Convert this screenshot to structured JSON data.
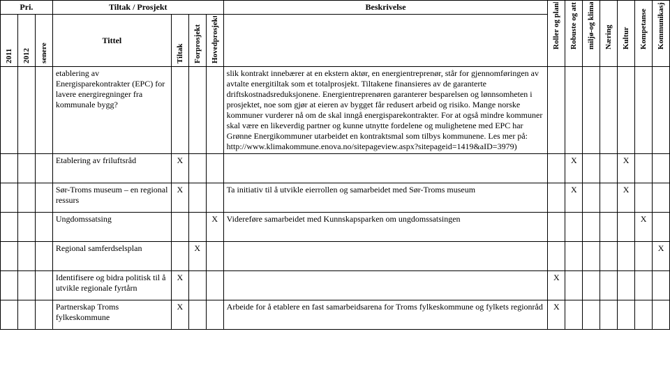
{
  "header": {
    "pri": "Pri.",
    "tiltak_prosjekt": "Tiltak / Prosjekt",
    "beskrivelse": "Beskrivelse",
    "tittel": "Tittel",
    "cols": {
      "y2011": "2011",
      "y2012": "2012",
      "senere": "senere",
      "tiltak": "Tiltak",
      "forprosjekt": "Forprosjekt",
      "hovedprosjekt": "Hovedprosjekt",
      "roller": "Roller og planlegingssone",
      "robuste": "Robuste og attraktive",
      "miljo": "miljø-og klima",
      "naering": "Næring",
      "kultur": "Kultur",
      "kompetanse": "Kompetanse",
      "kommunikasjon": "Kommunikasjon og infrastruktur"
    }
  },
  "rows": [
    {
      "title": "etablering av Energisparekontrakter (EPC) for lavere energiregninger fra kommunale bygg?",
      "desc": "slik kontrakt innebærer at en ekstern aktør, en energientreprenør, står for gjennomføringen av avtalte energitiltak som et totalprosjekt. Tiltakene finansieres av de garanterte driftskostnadsreduksjonene. Energientreprenøren garanterer besparelsen og lønnsomheten i prosjektet, noe som gjør at eieren av bygget får redusert arbeid og risiko. Mange norske kommuner vurderer nå om de skal inngå energisparekontrakter. For at også mindre kommuner skal være en likeverdig partner og kunne utnytte fordelene og mulighetene med EPC har Grønne Energikommuner utarbeidet en kontraktsmal som tilbys kommunene.  Les mer på: http://www.klimakommune.enova.no/sitepageview.aspx?sitepageid=1419&aID=3979)"
    },
    {
      "title": "Etablering av friluftsråd",
      "tiltak": "X",
      "robuste": "X",
      "kultur": "X"
    },
    {
      "title": "Sør-Troms museum – en regional ressurs",
      "tiltak": "X",
      "desc": "Ta initiativ til å utvikle eierrollen og samarbeidet med Sør-Troms museum",
      "robuste": "X",
      "kultur": "X"
    },
    {
      "title": "Ungdomssatsing",
      "hovedprosjekt": "X",
      "desc": "Videreføre samarbeidet med Kunnskapsparken om ungdomssatsingen",
      "kompetanse": "X"
    },
    {
      "title": "Regional samferdselsplan",
      "forprosjekt": "X",
      "kommunikasjon": "X"
    },
    {
      "title": "Identifisere og bidra politisk til å utvikle regionale fyrtårn",
      "tiltak": "X",
      "roller": "X"
    },
    {
      "title": "Partnerskap Troms fylkeskommune",
      "tiltak": "X",
      "desc": "Arbeide for å etablere en fast samarbeidsarena for Troms fylkeskommune og fylkets regionråd",
      "roller": "X"
    }
  ]
}
